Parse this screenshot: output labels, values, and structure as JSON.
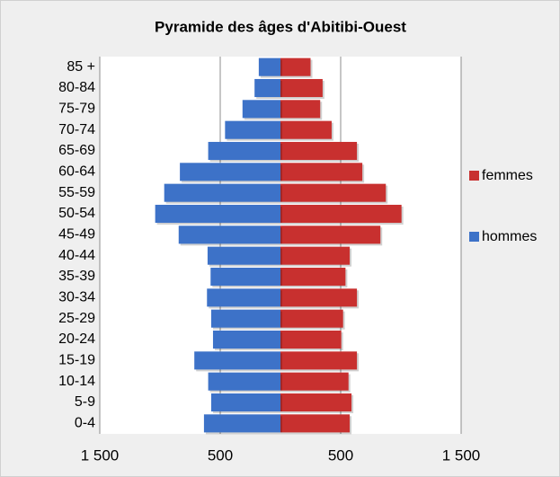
{
  "chart_data": {
    "type": "pyramid",
    "title": "Pyramide des âges d'Abitibi-Ouest",
    "categories": [
      "85 +",
      "80-84",
      "75-79",
      "70-74",
      "65-69",
      "60-64",
      "55-59",
      "50-54",
      "45-49",
      "40-44",
      "35-39",
      "30-34",
      "25-29",
      "20-24",
      "15-19",
      "10-14",
      "5-9",
      "0-4"
    ],
    "series": [
      {
        "name": "femmes",
        "color": "#c8302f",
        "values": [
          250,
          350,
          330,
          425,
          635,
          680,
          875,
          1005,
          830,
          575,
          540,
          635,
          520,
          505,
          635,
          565,
          590,
          575
        ]
      },
      {
        "name": "hommes",
        "color": "#3d72c8",
        "values": [
          -180,
          -215,
          -315,
          -460,
          -600,
          -835,
          -965,
          -1040,
          -845,
          -605,
          -580,
          -610,
          -575,
          -560,
          -715,
          -600,
          -575,
          -635
        ]
      }
    ],
    "xlim": [
      -1500,
      1500
    ],
    "xticks": [
      {
        "value": -1500,
        "label": "1 500"
      },
      {
        "value": -500,
        "label": "500"
      },
      {
        "value": 500,
        "label": "500"
      },
      {
        "value": 1500,
        "label": "1 500"
      }
    ],
    "grid": true,
    "legend": "right"
  }
}
